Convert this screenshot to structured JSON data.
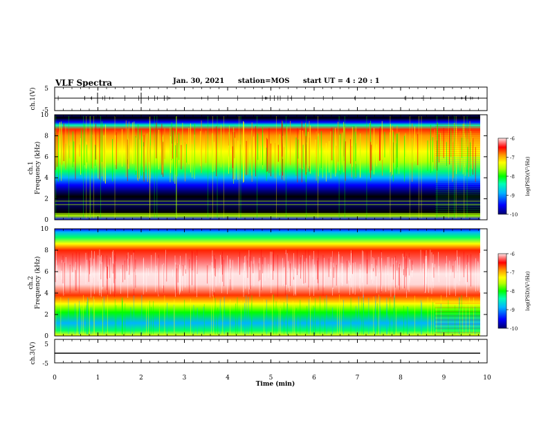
{
  "header": {
    "title": "VLF Spectra",
    "date": "Jan. 30, 2021",
    "station": "station=MOS",
    "start_ut": "start  UT =  4 : 20 : 1"
  },
  "chart_data": [
    {
      "type": "line",
      "panel": "ch1-waveform",
      "ylabel": "ch.1(V)",
      "ylim": [
        -5,
        5
      ],
      "yticks": [
        "5",
        "-5"
      ],
      "xlim": [
        0,
        10
      ],
      "series": [
        {
          "values_description_level": 0
        }
      ]
    },
    {
      "type": "heatmap",
      "panel": "ch1-spectrogram",
      "ylabel": "ch.1\nFrequency (kHz)",
      "ylabel_line1": "ch.1",
      "ylabel_line2": "Frequency (kHz)",
      "ylim": [
        0,
        10
      ],
      "yticks": [
        "0",
        "2",
        "4",
        "6",
        "8",
        "10"
      ],
      "xlim": [
        0,
        10
      ],
      "colorbar": {
        "label": "log(PSD)(V²/Hz)",
        "range": [
          -10,
          -6
        ],
        "ticks": [
          "-6",
          "-7",
          "-8",
          "-9",
          "-10"
        ]
      },
      "feature_change_min": 8.8
    },
    {
      "type": "heatmap",
      "panel": "ch2-spectrogram",
      "ylabel_line1": "ch.2",
      "ylabel_line2": "Frequency (kHz)",
      "ylim": [
        0,
        10
      ],
      "yticks": [
        "0",
        "2",
        "4",
        "6",
        "8",
        "10"
      ],
      "xlim": [
        0,
        10
      ],
      "colorbar": {
        "label": "log(PSD)(V²/Hz)",
        "range": [
          -10,
          -6
        ],
        "ticks": [
          "-6",
          "-7",
          "-8",
          "-9",
          "-10"
        ]
      },
      "feature_change_min": 8.8
    },
    {
      "type": "line",
      "panel": "ch3-waveform",
      "ylabel": "ch.3(V)",
      "ylim": [
        -5,
        5
      ],
      "yticks": [
        "5",
        "-5"
      ],
      "xlim": [
        0,
        10
      ],
      "xlabel": "Time (min)",
      "xticks": [
        "0",
        "1",
        "2",
        "3",
        "4",
        "5",
        "6",
        "7",
        "8",
        "9",
        "10"
      ]
    }
  ],
  "colors": {
    "colormap": [
      "#00006e",
      "#0000ff",
      "#00b4ff",
      "#00ffb4",
      "#00ff00",
      "#b4ff00",
      "#ffff00",
      "#ff9600",
      "#ff0000",
      "#ffe6e6"
    ]
  }
}
